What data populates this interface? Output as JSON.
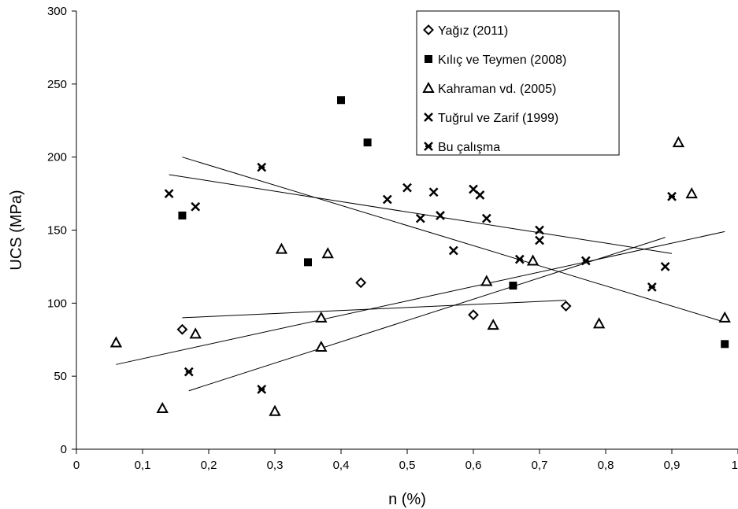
{
  "chart_data": {
    "type": "scatter",
    "xlabel": "n (%)",
    "ylabel": "UCS (MPa)",
    "xlim": [
      0,
      1
    ],
    "ylim": [
      0,
      300
    ],
    "xticks": [
      "0",
      "0,1",
      "0,2",
      "0,3",
      "0,4",
      "0,5",
      "0,6",
      "0,7",
      "0,8",
      "0,9",
      "1"
    ],
    "yticks": [
      "0",
      "50",
      "100",
      "150",
      "200",
      "250",
      "300"
    ],
    "grid": false,
    "legend_position": "top-right",
    "series": [
      {
        "name": "Yağız (2011)",
        "marker": "diamond-open",
        "points": [
          [
            0.16,
            82
          ],
          [
            0.43,
            114
          ],
          [
            0.6,
            92
          ],
          [
            0.74,
            98
          ]
        ],
        "trendline": [
          [
            0.16,
            90
          ],
          [
            0.74,
            102
          ]
        ]
      },
      {
        "name": "Kılıç ve Teymen (2008)",
        "marker": "square-filled",
        "points": [
          [
            0.16,
            160
          ],
          [
            0.35,
            128
          ],
          [
            0.4,
            239
          ],
          [
            0.44,
            210
          ],
          [
            0.66,
            112
          ],
          [
            0.98,
            72
          ]
        ],
        "trendline": [
          [
            0.16,
            200
          ],
          [
            0.98,
            87
          ]
        ]
      },
      {
        "name": "Kahraman vd. (2005)",
        "marker": "triangle-open",
        "points": [
          [
            0.06,
            73
          ],
          [
            0.13,
            28
          ],
          [
            0.18,
            79
          ],
          [
            0.3,
            26
          ],
          [
            0.31,
            137
          ],
          [
            0.37,
            90
          ],
          [
            0.37,
            70
          ],
          [
            0.38,
            134
          ],
          [
            0.62,
            115
          ],
          [
            0.63,
            85
          ],
          [
            0.69,
            129
          ],
          [
            0.79,
            86
          ],
          [
            0.91,
            210
          ],
          [
            0.93,
            175
          ],
          [
            0.98,
            90
          ]
        ],
        "trendline": [
          [
            0.06,
            58
          ],
          [
            0.98,
            149
          ]
        ]
      },
      {
        "name": "Tuğrul ve Zarif (1999)",
        "marker": "x",
        "points": [
          [
            0.14,
            175
          ],
          [
            0.18,
            166
          ],
          [
            0.47,
            171
          ],
          [
            0.5,
            179
          ],
          [
            0.52,
            158
          ],
          [
            0.54,
            176
          ],
          [
            0.55,
            160
          ],
          [
            0.57,
            136
          ],
          [
            0.6,
            178
          ],
          [
            0.61,
            174
          ],
          [
            0.62,
            158
          ],
          [
            0.7,
            150
          ],
          [
            0.7,
            143
          ],
          [
            0.89,
            125
          ]
        ],
        "trendline": [
          [
            0.14,
            188
          ],
          [
            0.9,
            134
          ]
        ]
      },
      {
        "name": "Bu çalışma",
        "marker": "asterisk",
        "points": [
          [
            0.17,
            53
          ],
          [
            0.28,
            193
          ],
          [
            0.28,
            41
          ],
          [
            0.67,
            130
          ],
          [
            0.77,
            129
          ],
          [
            0.87,
            111
          ],
          [
            0.9,
            173
          ]
        ],
        "trendline": [
          [
            0.17,
            40
          ],
          [
            0.89,
            145
          ]
        ]
      }
    ]
  }
}
